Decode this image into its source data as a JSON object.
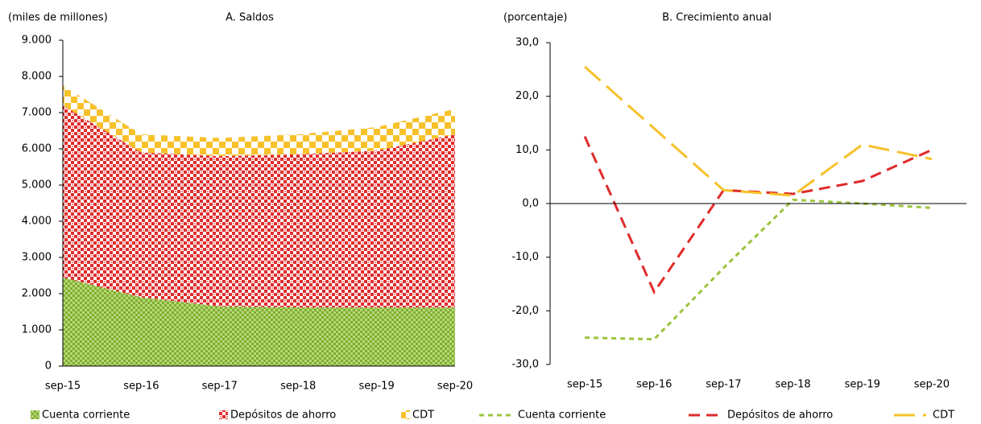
{
  "chart_data": [
    {
      "type": "stacked-area",
      "title": "A. Saldos",
      "y_label": "(miles de millones)",
      "categories": [
        "sep-15",
        "sep-16",
        "sep-17",
        "sep-18",
        "sep-19",
        "sep-20"
      ],
      "series": [
        {
          "name": "Cuenta corriente",
          "color": "#8fbf3a",
          "values": [
            2450,
            1900,
            1650,
            1620,
            1620,
            1620
          ]
        },
        {
          "name": "Depósitos de ahorro",
          "color": "#e02b2b",
          "values": [
            4750,
            4000,
            4150,
            4230,
            4330,
            4780
          ]
        },
        {
          "name": "CDT",
          "color": "#f7c12b",
          "values": [
            550,
            500,
            500,
            550,
            650,
            700
          ]
        }
      ],
      "ylim": [
        0,
        9000
      ],
      "yticks": [
        0,
        {
          "value": 1000,
          "label": "1.000"
        },
        {
          "value": 2000,
          "label": "2.000"
        },
        {
          "value": 3000,
          "label": "3.000"
        },
        {
          "value": 4000,
          "label": "4.000"
        },
        {
          "value": 5000,
          "label": "5.000"
        },
        {
          "value": 6000,
          "label": "6.000"
        },
        {
          "value": 7000,
          "label": "7.000"
        },
        {
          "value": 8000,
          "label": "8.000"
        },
        {
          "value": 9000,
          "label": "9.000"
        }
      ],
      "grid": false
    },
    {
      "type": "line",
      "title": "B. Crecimiento anual",
      "y_label": "(porcentaje)",
      "categories": [
        "sep-15",
        "sep-16",
        "sep-17",
        "sep-18",
        "sep-19",
        "sep-20"
      ],
      "series": [
        {
          "name": "Cuenta corriente",
          "color": "#9bc53d",
          "values": [
            -25,
            -25.3,
            -12,
            0.7,
            0,
            -0.8
          ]
        },
        {
          "name": "Depósitos de ahorro",
          "color": "#e02b2b",
          "values": [
            12.5,
            -16.5,
            2.5,
            1.8,
            4.2,
            10
          ]
        },
        {
          "name": "CDT",
          "color": "#f7c12b",
          "values": [
            25.5,
            14,
            2.5,
            1.5,
            11,
            8.3
          ]
        }
      ],
      "ylim": [
        -30,
        30
      ],
      "yticks": [
        {
          "value": -30,
          "label": "-30,0"
        },
        {
          "value": -20,
          "label": "-20,0"
        },
        {
          "value": -10,
          "label": "-10,0"
        },
        {
          "value": 0,
          "label": "0,0"
        },
        {
          "value": 10,
          "label": "10,0"
        },
        {
          "value": 20,
          "label": "20,0"
        },
        {
          "value": 30,
          "label": "30,0"
        }
      ],
      "grid": false
    }
  ]
}
